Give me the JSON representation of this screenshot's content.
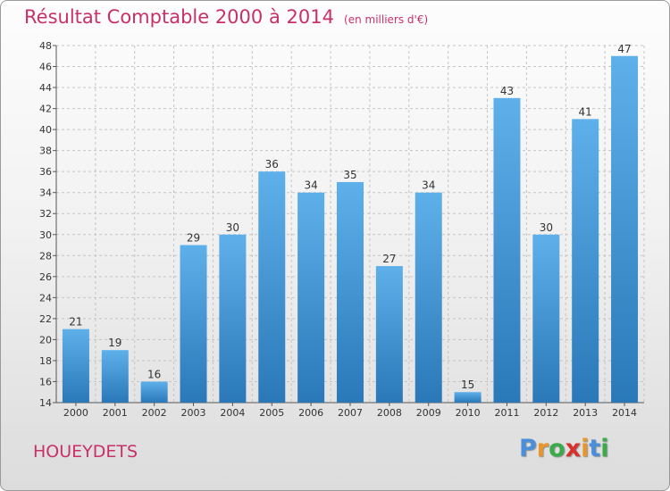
{
  "page": {
    "commune": "HOUEYDETS",
    "logo": {
      "letters": [
        "P",
        "r",
        "o",
        "x",
        "i",
        "t",
        "i"
      ],
      "colors": [
        "#4a8fd8",
        "#e8962a",
        "#3aaa4a",
        "#d8302a",
        "#e8962a",
        "#4a8fd8",
        "#3aaa4a"
      ]
    }
  },
  "chart_data": {
    "type": "bar",
    "title": "Résultat Comptable 2000 à 2014",
    "subtitle": "(en milliers d'€)",
    "xlabel": "",
    "ylabel": "",
    "categories": [
      "2000",
      "2001",
      "2002",
      "2003",
      "2004",
      "2005",
      "2006",
      "2007",
      "2008",
      "2009",
      "2010",
      "2011",
      "2012",
      "2013",
      "2014"
    ],
    "values": [
      21,
      19,
      16,
      29,
      30,
      36,
      34,
      35,
      27,
      34,
      15,
      43,
      30,
      41,
      47
    ],
    "data_labels": [
      "21",
      "19",
      "16",
      "29",
      "30",
      "36",
      "34",
      "35",
      "27",
      "34",
      "15",
      "43",
      "30",
      "41",
      "47"
    ],
    "ylim": [
      14,
      48
    ],
    "yticks": [
      "14",
      "16",
      "18",
      "20",
      "22",
      "24",
      "26",
      "28",
      "30",
      "32",
      "34",
      "36",
      "38",
      "40",
      "42",
      "44",
      "46",
      "48"
    ],
    "grid": true,
    "bar_color_light": "#5eb0ea",
    "bar_color_dark": "#2a78b8"
  }
}
